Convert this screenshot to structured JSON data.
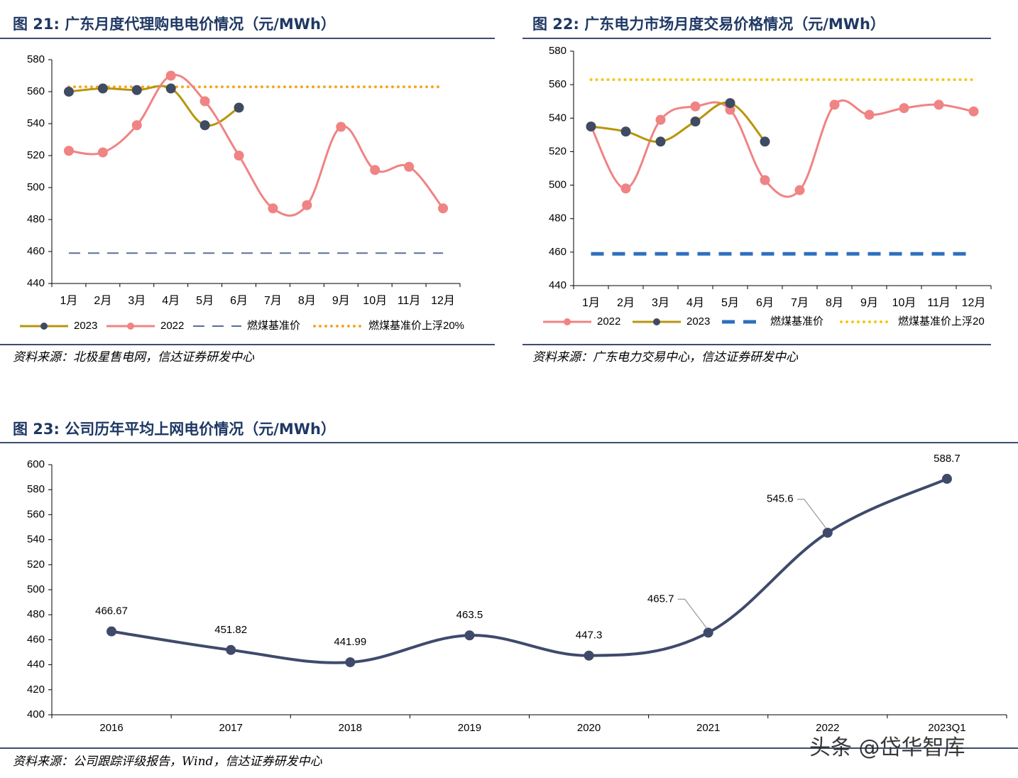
{
  "figures": {
    "fig21_title": "图 21:  广东月度代理购电电价情况（元/MWh）",
    "fig21_source": "资料来源：北极星售电网，信达证券研发中心",
    "fig22_title": "图 22:  广东电力市场月度交易价格情况（元/MWh）",
    "fig22_source": "资料来源：广东电力交易中心，信达证券研发中心",
    "fig23_title": "图 23:  公司历年平均上网电价情况（元/MWh）",
    "fig23_source": "资料来源：公司跟踪评级报告，Wind，信达证券研发中心"
  },
  "watermark": "头条 @岱华智库",
  "chart_data": [
    {
      "type": "line",
      "categories": [
        "1月",
        "2月",
        "3月",
        "4月",
        "5月",
        "6月",
        "7月",
        "8月",
        "9月",
        "10月",
        "11月",
        "12月"
      ],
      "ylim": [
        440,
        580
      ],
      "yticks": [
        440,
        460,
        480,
        500,
        520,
        540,
        560,
        580
      ],
      "legend_order": [
        "2023",
        "2022",
        "燃煤基准价",
        "燃煤基准价上浮20%"
      ],
      "legend_position": "bottom",
      "series": [
        {
          "name": "2023",
          "color": "#b8960c",
          "marker_color": "#3f4a63",
          "values": [
            560,
            562,
            561,
            562,
            539,
            550,
            null,
            null,
            null,
            null,
            null,
            null
          ]
        },
        {
          "name": "2022",
          "color": "#f08383",
          "marker_color": "#f08383",
          "values": [
            523,
            522,
            539,
            570,
            554,
            520,
            487,
            489,
            538,
            511,
            513,
            487
          ]
        },
        {
          "name": "燃煤基准价",
          "color": "#5b6e9a",
          "style": "dashed",
          "values": [
            459,
            459,
            459,
            459,
            459,
            459,
            459,
            459,
            459,
            459,
            459,
            459
          ]
        },
        {
          "name": "燃煤基准价上浮20%",
          "color": "#f5a623",
          "style": "dotted",
          "values": [
            563,
            563,
            563,
            563,
            563,
            563,
            563,
            563,
            563,
            563,
            563,
            563
          ]
        }
      ]
    },
    {
      "type": "line",
      "categories": [
        "1月",
        "2月",
        "3月",
        "4月",
        "5月",
        "6月",
        "7月",
        "8月",
        "9月",
        "10月",
        "11月",
        "12月"
      ],
      "ylim": [
        440,
        580
      ],
      "yticks": [
        440,
        460,
        480,
        500,
        520,
        540,
        560,
        580
      ],
      "legend_order": [
        "2022",
        "2023",
        "燃煤基准价",
        "燃煤基准价上浮20"
      ],
      "legend_position": "bottom",
      "series": [
        {
          "name": "2022",
          "color": "#f08383",
          "marker_color": "#f08383",
          "values": [
            535,
            498,
            539,
            547,
            545,
            503,
            497,
            548,
            542,
            546,
            548,
            544
          ]
        },
        {
          "name": "2023",
          "color": "#b8960c",
          "marker_color": "#3f4a63",
          "values": [
            535,
            532,
            526,
            538,
            549,
            526,
            null,
            null,
            null,
            null,
            null,
            null
          ]
        },
        {
          "name": "燃煤基准价",
          "color": "#2e6fbd",
          "style": "dashed",
          "values": [
            459,
            459,
            459,
            459,
            459,
            459,
            459,
            459,
            459,
            459,
            459,
            459
          ]
        },
        {
          "name": "燃煤基准价上浮20",
          "color": "#f5c518",
          "style": "dotted",
          "values": [
            563,
            563,
            563,
            563,
            563,
            563,
            563,
            563,
            563,
            563,
            563,
            563
          ]
        }
      ]
    },
    {
      "type": "line",
      "categories": [
        "2016",
        "2017",
        "2018",
        "2019",
        "2020",
        "2021",
        "2022",
        "2023Q1"
      ],
      "ylim": [
        400,
        600
      ],
      "yticks": [
        400,
        420,
        440,
        460,
        480,
        500,
        520,
        540,
        560,
        580,
        600
      ],
      "series": [
        {
          "color": "#3f4a6b",
          "values": [
            466.67,
            451.82,
            441.99,
            463.5,
            447.3,
            465.7,
            545.6,
            588.7
          ],
          "labels": [
            "466.67",
            "451.82",
            "441.99",
            "463.5",
            "447.3",
            "465.7",
            "545.6",
            "588.7"
          ]
        }
      ]
    }
  ]
}
